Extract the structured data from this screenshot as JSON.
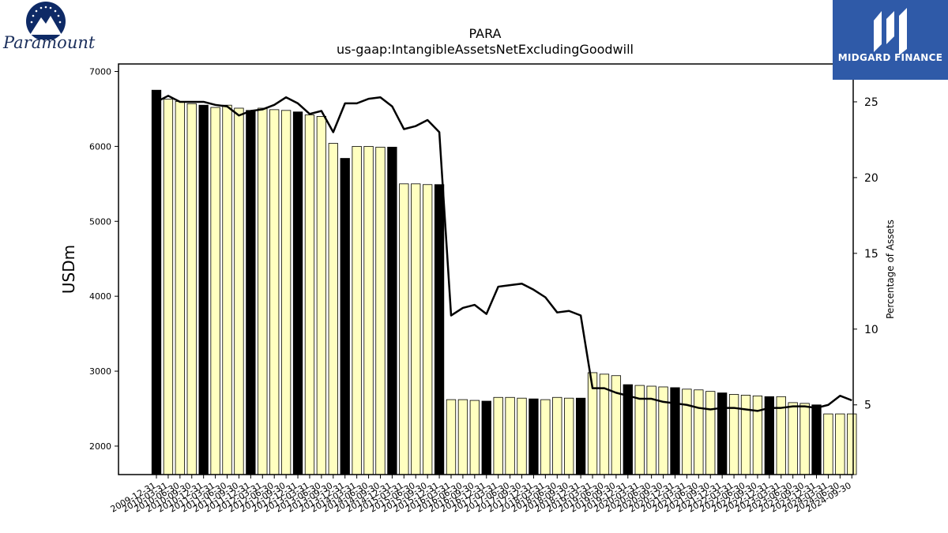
{
  "chart_data": {
    "type": "bar",
    "title": "PARA",
    "subtitle": "us-gaap:IntangibleAssetsNetExcludingGoodwill",
    "ylabel": "USDm",
    "y2label": "Percentage of Assets",
    "ylim": [
      1620,
      7100
    ],
    "y2lim": [
      0.4,
      27.5
    ],
    "yticks": [
      2000,
      3000,
      4000,
      5000,
      6000,
      7000
    ],
    "y2ticks": [
      5,
      10,
      15,
      20,
      25
    ],
    "categories": [
      "2009-12-31",
      "2010-03-31",
      "2010-06-30",
      "2010-09-30",
      "2010-12-31",
      "2011-03-31",
      "2011-06-30",
      "2011-09-30",
      "2011-12-31",
      "2012-03-31",
      "2012-06-30",
      "2012-09-30",
      "2012-12-31",
      "2013-03-31",
      "2013-06-30",
      "2013-09-30",
      "2013-12-31",
      "2014-03-31",
      "2014-06-30",
      "2014-09-30",
      "2014-12-31",
      "2015-03-31",
      "2015-06-30",
      "2015-09-30",
      "2015-12-31",
      "2016-03-31",
      "2016-06-30",
      "2016-09-30",
      "2016-12-31",
      "2017-03-31",
      "2017-06-30",
      "2017-09-30",
      "2017-12-31",
      "2018-03-31",
      "2018-06-30",
      "2018-09-30",
      "2018-12-31",
      "2019-03-31",
      "2019-06-30",
      "2019-09-30",
      "2019-12-31",
      "2020-03-31",
      "2020-06-30",
      "2020-09-30",
      "2020-12-31",
      "2021-03-31",
      "2021-06-30",
      "2021-09-30",
      "2021-12-31",
      "2022-03-31",
      "2022-06-30",
      "2022-09-30",
      "2022-12-31",
      "2023-03-31",
      "2023-06-30",
      "2023-09-30",
      "2023-12-31",
      "2024-03-31",
      "2024-06-30",
      "2024-09-30"
    ],
    "tick_labels": [
      "2009-12-31",
      "2010-03-31",
      "2010-06-30",
      "2010-09-30",
      "2010-12-31",
      "2011-03-31",
      "2011-06-30",
      "2011-09-30",
      "2011-12-31",
      "2012-03-31",
      "2012-06-30",
      "2012-09-30",
      "2012-12-31",
      "2013-03-31",
      "2013-06-30",
      "2013-09-30",
      "2013-12-31",
      "2014-03-31",
      "2014-06-30",
      "2014-09-30",
      "2014-12-31",
      "2015-03-31",
      "2015-06-30",
      "2015-09-30",
      "2015-12-31",
      "2016-03-31",
      "2016-06-30",
      "2016-09-30",
      "2016-12-31",
      "2017-03-31",
      "2017-06-30",
      "2017-09-30",
      "2017-12-31",
      "2018-03-31",
      "2018-06-30",
      "2018-09-30",
      "2018-12-31",
      "2019-03-31",
      "2019-06-30",
      "2019-09-30",
      "2019-12-31",
      "2020-03-31",
      "2020-06-30",
      "2020-09-30",
      "2020-12-31",
      "2021-03-31",
      "2021-06-30",
      "2021-09-30",
      "2021-12-31",
      "2022-03-31",
      "2022-06-30",
      "2022-09-30",
      "2022-12-31",
      "2023-03-31",
      "2023-06-30",
      "2023-09-30",
      "2023-12-31",
      "2024-03-31",
      "2024-06-30",
      "2024-09-30"
    ],
    "series": [
      {
        "kind": "bar",
        "values": [
          6750,
          6630,
          6600,
          6570,
          6550,
          6520,
          6550,
          6510,
          6480,
          6510,
          6490,
          6480,
          6460,
          6420,
          6400,
          6040,
          5840,
          6000,
          6000,
          5990,
          5990,
          5500,
          5500,
          5490,
          5490,
          2620,
          2620,
          2610,
          2600,
          2650,
          2650,
          2640,
          2630,
          2620,
          2650,
          2640,
          2640,
          2980,
          2960,
          2940,
          2820,
          2810,
          2800,
          2790,
          2780,
          2760,
          2750,
          2730,
          2710,
          2690,
          2680,
          2670,
          2660,
          2660,
          2580,
          2570,
          2550,
          2430,
          2430,
          2430
        ],
        "annual_color": "#000000",
        "quarter_color": "#ffffc0"
      },
      {
        "kind": "line",
        "values": [
          25.0,
          25.4,
          25.0,
          25.0,
          25.0,
          24.8,
          24.7,
          24.1,
          24.4,
          24.5,
          24.8,
          25.3,
          24.9,
          24.2,
          24.4,
          23.0,
          24.9,
          24.9,
          25.2,
          25.3,
          24.7,
          23.2,
          23.4,
          23.8,
          23.0,
          10.9,
          11.4,
          11.6,
          11.0,
          12.8,
          12.9,
          13.0,
          12.6,
          12.1,
          11.1,
          11.2,
          10.9,
          6.1,
          6.1,
          5.8,
          5.6,
          5.4,
          5.4,
          5.2,
          5.1,
          5.0,
          4.8,
          4.7,
          4.8,
          4.8,
          4.7,
          4.6,
          4.8,
          4.8,
          4.9,
          4.9,
          4.8,
          5.0,
          5.6,
          5.3
        ],
        "color": "#000000"
      }
    ],
    "grid": false,
    "legend": "none"
  },
  "logos": {
    "left_name": "Paramount",
    "right_name": "MIDGARD FINANCE"
  }
}
